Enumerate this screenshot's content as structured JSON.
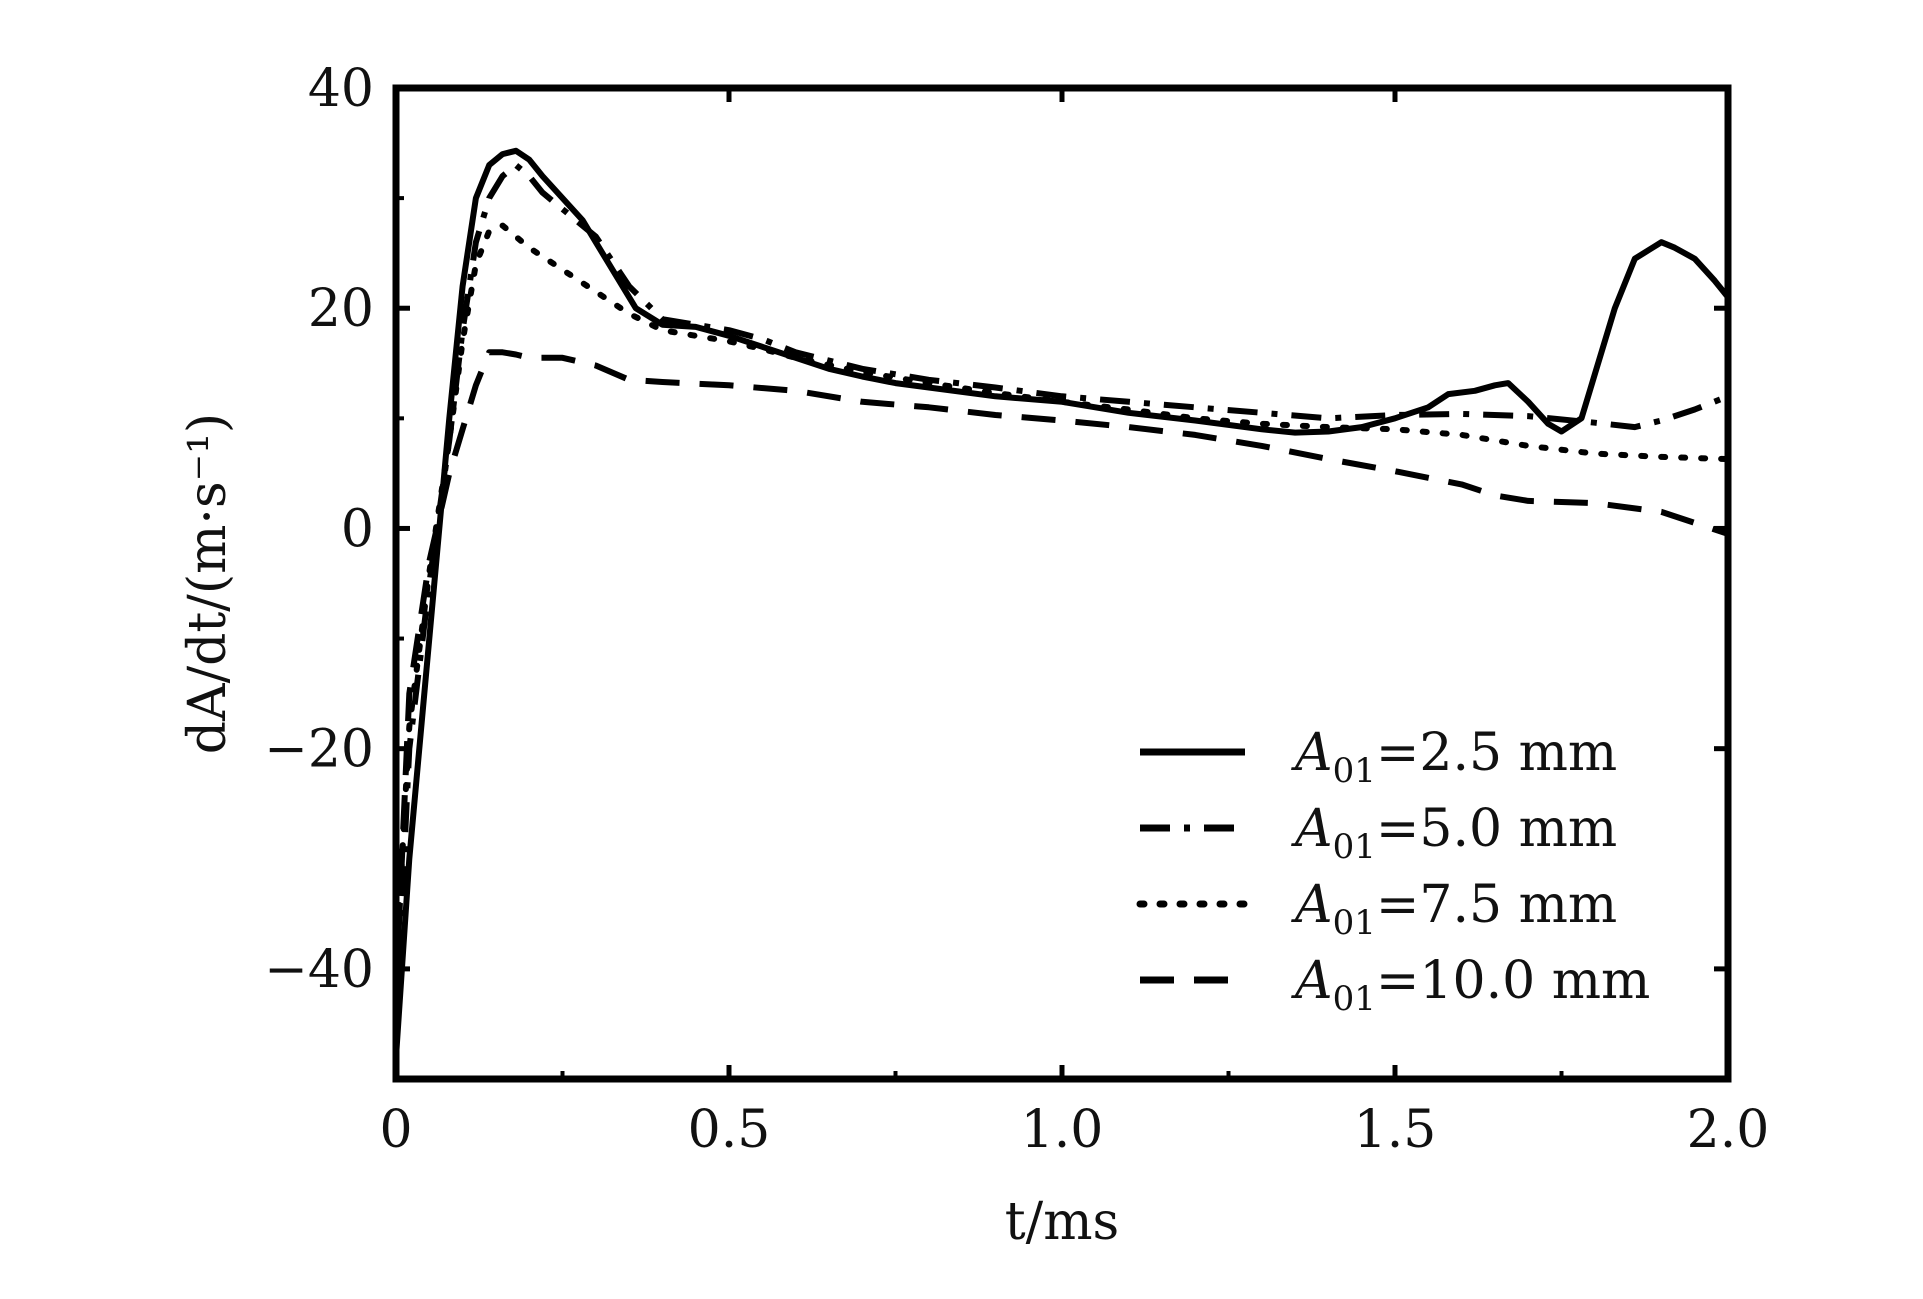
{
  "chart_data": {
    "type": "line",
    "xlabel": "t/ms",
    "ylabel": "dA/dt/(m·s⁻¹)",
    "xlim": [
      0,
      2.0
    ],
    "ylim": [
      -50,
      40
    ],
    "xticks": [
      0,
      0.5,
      1.0,
      1.5,
      2.0
    ],
    "xtick_labels": [
      "0",
      "0.5",
      "1.0",
      "1.5",
      "2.0"
    ],
    "yticks": [
      -40,
      -20,
      0,
      20,
      40
    ],
    "ytick_labels": [
      "−40",
      "−20",
      "0",
      "20",
      "40"
    ],
    "grid": false,
    "legend_position": "bottom-right",
    "series": [
      {
        "name": "A01=2.5 mm",
        "legend_base": "A",
        "legend_sub": "01",
        "legend_rest": "=2.5 mm",
        "style": "solid",
        "color": "#000000",
        "x": [
          0,
          0.02,
          0.05,
          0.08,
          0.1,
          0.12,
          0.14,
          0.16,
          0.18,
          0.2,
          0.22,
          0.25,
          0.28,
          0.3,
          0.33,
          0.36,
          0.4,
          0.45,
          0.5,
          0.55,
          0.6,
          0.65,
          0.7,
          0.75,
          0.8,
          0.9,
          1.0,
          1.1,
          1.2,
          1.3,
          1.35,
          1.4,
          1.45,
          1.5,
          1.55,
          1.58,
          1.62,
          1.65,
          1.67,
          1.7,
          1.73,
          1.75,
          1.78,
          1.8,
          1.83,
          1.86,
          1.9,
          1.92,
          1.95,
          1.98,
          2.0
        ],
        "y": [
          -48,
          -30,
          -10,
          10,
          22,
          30,
          33,
          34,
          34.3,
          33.5,
          32,
          30,
          28,
          26,
          23,
          20,
          18.5,
          18.3,
          17.5,
          16.5,
          15.5,
          14.5,
          13.8,
          13.2,
          12.8,
          12,
          11.5,
          10.5,
          9.8,
          9,
          8.7,
          8.8,
          9.2,
          10,
          11,
          12.2,
          12.5,
          13,
          13.2,
          11.5,
          9.5,
          8.8,
          10,
          14,
          20,
          24.5,
          26,
          25.5,
          24.5,
          22.5,
          21
        ]
      },
      {
        "name": "A01=5.0 mm",
        "legend_base": "A",
        "legend_sub": "01",
        "legend_rest": "=5.0 mm",
        "style": "dashdot",
        "color": "#000000",
        "x": [
          0,
          0.02,
          0.05,
          0.08,
          0.1,
          0.12,
          0.14,
          0.16,
          0.18,
          0.2,
          0.22,
          0.25,
          0.3,
          0.35,
          0.4,
          0.45,
          0.5,
          0.55,
          0.6,
          0.7,
          0.8,
          0.9,
          1.0,
          1.1,
          1.2,
          1.3,
          1.4,
          1.5,
          1.6,
          1.7,
          1.8,
          1.86,
          1.9,
          1.95,
          2.0
        ],
        "y": [
          -45,
          -20,
          -5,
          8,
          18,
          26,
          30,
          32,
          33,
          32,
          30.5,
          29,
          26.5,
          22,
          19,
          18.5,
          18,
          17.2,
          16,
          14.5,
          13.5,
          12.8,
          12,
          11.5,
          11,
          10.5,
          10,
          10.3,
          10.4,
          10.2,
          9.6,
          9.2,
          9.8,
          10.8,
          12
        ]
      },
      {
        "name": "A01=7.5 mm",
        "legend_base": "A",
        "legend_sub": "01",
        "legend_rest": "=7.5 mm",
        "style": "dotted",
        "color": "#000000",
        "x": [
          0,
          0.02,
          0.05,
          0.08,
          0.1,
          0.12,
          0.14,
          0.16,
          0.18,
          0.2,
          0.25,
          0.3,
          0.35,
          0.4,
          0.45,
          0.5,
          0.55,
          0.6,
          0.7,
          0.8,
          0.9,
          1.0,
          1.1,
          1.2,
          1.3,
          1.4,
          1.5,
          1.6,
          1.7,
          1.8,
          1.9,
          2.0
        ],
        "y": [
          -40,
          -18,
          -4,
          8,
          17,
          24,
          27,
          27.5,
          26.5,
          25.5,
          23.5,
          21.5,
          19.5,
          18,
          17.5,
          17,
          16.3,
          15.5,
          14.2,
          13.2,
          12.3,
          11.5,
          10.8,
          10,
          9.5,
          9.2,
          9,
          8.5,
          7.5,
          6.8,
          6.5,
          6.3
        ]
      },
      {
        "name": "A01=10.0 mm",
        "legend_base": "A",
        "legend_sub": "01",
        "legend_rest": "=10.0 mm",
        "style": "dashed",
        "color": "#000000",
        "x": [
          0,
          0.02,
          0.05,
          0.08,
          0.1,
          0.12,
          0.14,
          0.16,
          0.18,
          0.2,
          0.25,
          0.3,
          0.35,
          0.4,
          0.5,
          0.6,
          0.7,
          0.8,
          0.9,
          1.0,
          1.1,
          1.2,
          1.3,
          1.4,
          1.5,
          1.6,
          1.65,
          1.7,
          1.8,
          1.9,
          2.0
        ],
        "y": [
          -42,
          -15,
          -3,
          5,
          9,
          13,
          16,
          16,
          15.8,
          15.5,
          15.5,
          14.8,
          13.5,
          13.3,
          13,
          12.5,
          11.5,
          11,
          10.3,
          9.8,
          9.2,
          8.5,
          7.5,
          6.3,
          5.2,
          4,
          3,
          2.5,
          2.3,
          1.5,
          -0.5
        ]
      }
    ]
  }
}
